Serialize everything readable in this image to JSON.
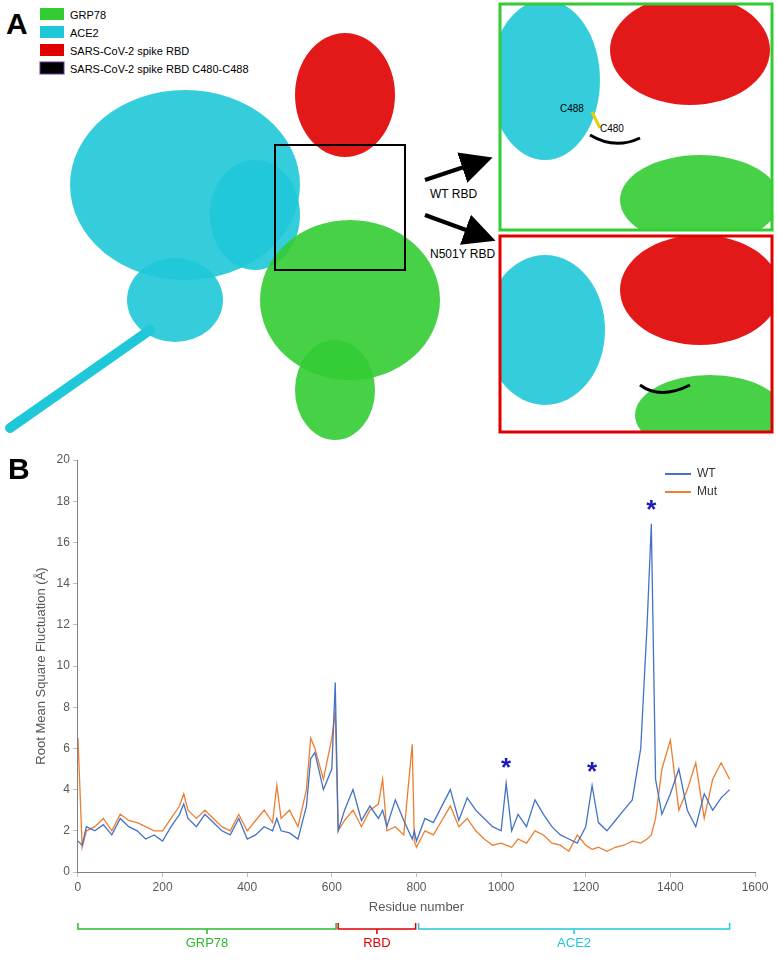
{
  "figure": {
    "panels": [
      {
        "label": "A",
        "legend": [
          {
            "label": "GRP78",
            "color": "#33cc33"
          },
          {
            "label": "ACE2",
            "color": "#1fc8d8"
          },
          {
            "label": "SARS-CoV-2 spike RBD",
            "color": "#e00000"
          },
          {
            "label": "SARS-CoV-2 spike RBD C480-C488",
            "color": "#000000"
          }
        ],
        "arrows": [
          "WT RBD",
          "N501Y RBD"
        ],
        "inset_labels": [
          "C488",
          "C480"
        ]
      },
      {
        "label": "B"
      }
    ]
  },
  "chart_data": {
    "type": "line",
    "x_label": "Residue number",
    "y_label": "Root Mean Square Fluctuation (Å)",
    "x": [
      0,
      10,
      20,
      40,
      60,
      80,
      100,
      120,
      140,
      160,
      180,
      200,
      220,
      240,
      250,
      260,
      280,
      300,
      320,
      340,
      360,
      380,
      400,
      420,
      440,
      460,
      470,
      480,
      500,
      520,
      540,
      550,
      560,
      580,
      600,
      608,
      615,
      630,
      650,
      670,
      690,
      710,
      720,
      730,
      750,
      770,
      790,
      795,
      800,
      820,
      840,
      860,
      880,
      900,
      920,
      940,
      960,
      980,
      1000,
      1012,
      1025,
      1040,
      1060,
      1080,
      1100,
      1120,
      1140,
      1160,
      1180,
      1200,
      1215,
      1230,
      1250,
      1270,
      1290,
      1310,
      1330,
      1345,
      1355,
      1365,
      1380,
      1400,
      1420,
      1440,
      1460,
      1480,
      1500,
      1520,
      1540
    ],
    "series": [
      {
        "name": "WT",
        "color": "#4472c4",
        "values": [
          1.5,
          1.3,
          2.2,
          2.0,
          2.3,
          1.8,
          2.6,
          2.2,
          2.0,
          1.6,
          1.8,
          1.5,
          2.2,
          2.8,
          3.3,
          2.6,
          2.2,
          2.8,
          2.4,
          2.0,
          1.8,
          2.6,
          1.6,
          1.8,
          2.2,
          2.0,
          2.6,
          2.0,
          1.9,
          1.6,
          3.2,
          5.5,
          5.8,
          4.0,
          5.0,
          9.2,
          2.0,
          3.0,
          4.0,
          2.5,
          3.2,
          2.6,
          3.0,
          2.2,
          3.5,
          2.5,
          1.6,
          2.0,
          1.5,
          2.6,
          2.4,
          3.2,
          4.0,
          2.5,
          3.6,
          3.0,
          2.6,
          2.2,
          2.0,
          4.3,
          2.0,
          2.8,
          2.2,
          3.5,
          2.8,
          2.2,
          1.8,
          1.6,
          1.4,
          2.2,
          4.2,
          2.4,
          2.0,
          2.5,
          3.0,
          3.5,
          6.0,
          12.0,
          16.9,
          4.5,
          2.8,
          3.8,
          5.0,
          3.0,
          2.2,
          3.8,
          3.0,
          3.6,
          4.0
        ]
      },
      {
        "name": "Mut",
        "color": "#ed7d31",
        "values": [
          6.5,
          1.2,
          2.0,
          2.2,
          2.6,
          2.0,
          2.8,
          2.5,
          2.4,
          2.2,
          2.0,
          2.0,
          2.6,
          3.2,
          3.8,
          3.0,
          2.6,
          3.0,
          2.6,
          2.2,
          2.0,
          2.8,
          2.0,
          2.5,
          3.0,
          2.4,
          4.2,
          2.6,
          3.0,
          2.2,
          4.0,
          6.5,
          6.0,
          4.5,
          6.5,
          7.8,
          2.0,
          2.5,
          3.0,
          2.2,
          3.0,
          3.3,
          4.5,
          2.0,
          2.2,
          1.8,
          6.2,
          1.5,
          1.2,
          2.0,
          1.8,
          2.5,
          3.2,
          2.2,
          2.6,
          2.0,
          1.6,
          1.3,
          1.4,
          1.3,
          1.2,
          1.6,
          1.4,
          2.0,
          1.8,
          1.4,
          1.3,
          1.0,
          1.8,
          1.3,
          1.1,
          1.2,
          1.0,
          1.2,
          1.3,
          1.5,
          1.4,
          1.6,
          1.8,
          2.6,
          5.0,
          6.4,
          3.0,
          4.0,
          5.3,
          2.6,
          4.5,
          5.3,
          4.5
        ]
      }
    ],
    "xlim": [
      0,
      1600
    ],
    "xticks": [
      0,
      200,
      400,
      600,
      800,
      1000,
      1200,
      1400,
      1600
    ],
    "ylim": [
      0,
      20
    ],
    "yticks": [
      0,
      2,
      4,
      6,
      8,
      10,
      12,
      14,
      16,
      18,
      20
    ],
    "grid": false,
    "legend": "upper right",
    "annotations": [
      {
        "text": "*",
        "x": 1012,
        "y": 5.3
      },
      {
        "text": "*",
        "x": 1215,
        "y": 5.1
      },
      {
        "text": "*",
        "x": 1355,
        "y": 17.8
      }
    ],
    "regions": [
      {
        "label": "GRP78",
        "start": 0,
        "end": 610,
        "color": "#2db82d"
      },
      {
        "label": "RBD",
        "start": 615,
        "end": 798,
        "color": "#e00000"
      },
      {
        "label": "ACE2",
        "start": 805,
        "end": 1540,
        "color": "#1fc8d8"
      }
    ]
  }
}
